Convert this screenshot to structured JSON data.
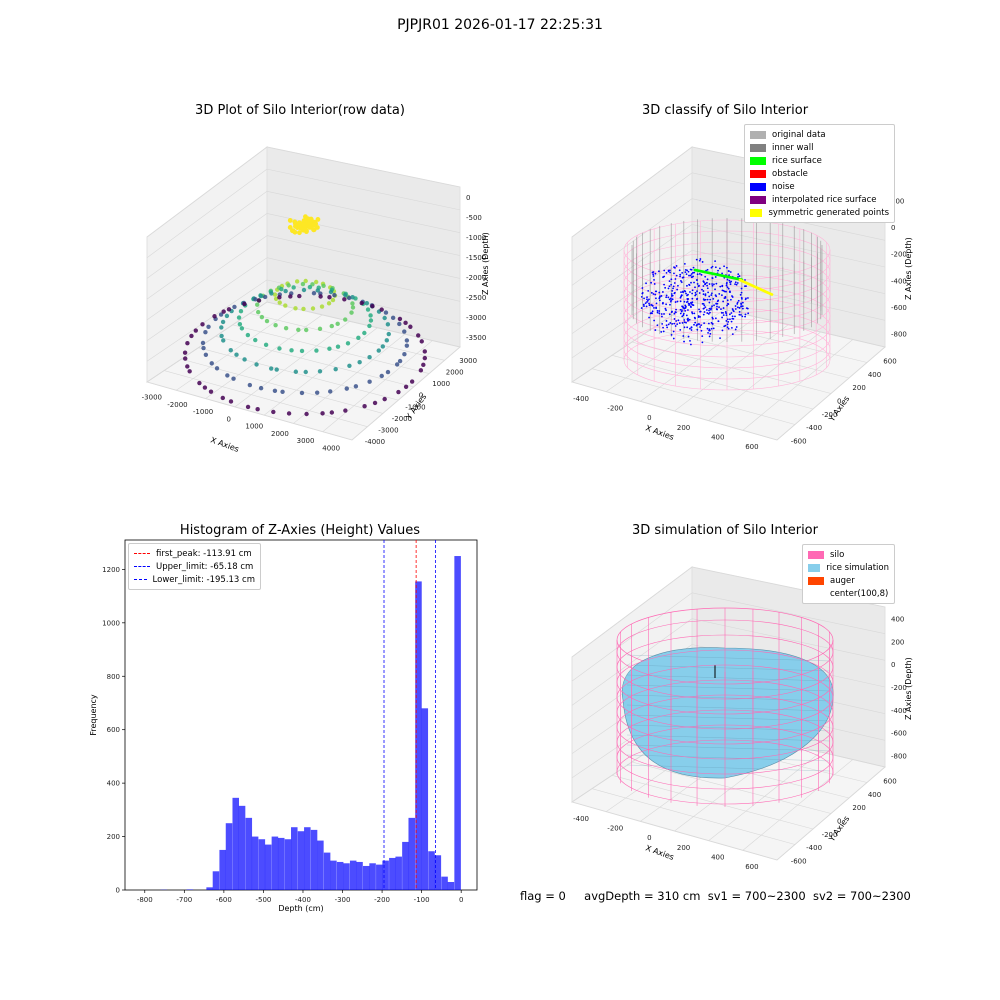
{
  "figure": {
    "suptitle": "PJPJR01 2026-01-17 22:25:31"
  },
  "status_line": {
    "flag": "flag = 0",
    "avg_depth": "avgDepth = 310 cm",
    "sv1": "sv1 = 700~2300",
    "sv2": "sv2 = 700~2300"
  },
  "colors": {
    "original_data": "#b0b0b0",
    "inner_wall": "#808080",
    "rice_surface": "#00ff00",
    "obstacle": "#ff0000",
    "noise": "#0000ff",
    "interpolated_rice_surface": "#800080",
    "symmetric_generated_points": "#ffff00",
    "silo": "#ff69b4",
    "rice_simulation": "#87ceeb",
    "auger": "#ff4500",
    "hist_bar": "#0000ff",
    "first_peak_line": "#ff0000",
    "limit_line": "#0000ff"
  },
  "chart_data": [
    {
      "type": "scatter",
      "subtype": "3d",
      "title": "3D Plot of Silo Interior(row data)",
      "xlabel": "X Axies",
      "ylabel": "Y Axies",
      "zlabel": "Z Axies (Depth)",
      "x_ticks": [
        "-3000",
        "-2000",
        "-1000",
        "0",
        "1000",
        "2000",
        "3000",
        "4000"
      ],
      "y_ticks": [
        "-4000",
        "-3000",
        "-2000",
        "-1000",
        "0",
        "1000",
        "2000",
        "3000"
      ],
      "z_ticks": [
        "0",
        "-500",
        "-1000",
        "-1500",
        "-2000",
        "-2500",
        "-3000",
        "-3500"
      ],
      "colormap": "viridis"
    },
    {
      "type": "scatter",
      "subtype": "3d",
      "title": "3D classify of Silo Interior",
      "xlabel": "X Axies",
      "ylabel": "Y Axies",
      "zlabel": "Z Axies (Depth)",
      "x_ticks": [
        "-400",
        "-200",
        "0",
        "200",
        "400",
        "600"
      ],
      "y_ticks": [
        "-600",
        "-400",
        "-200",
        "0",
        "200",
        "400",
        "600"
      ],
      "z_ticks": [
        "200",
        "0",
        "-200",
        "-400",
        "-600",
        "-800"
      ],
      "legend": [
        "original data",
        "inner wall",
        "rice surface",
        "obstacle",
        "noise",
        "interpolated rice surface",
        "symmetric generated points"
      ],
      "legend_position": "top-right"
    },
    {
      "type": "bar",
      "subtype": "histogram",
      "title": "Histogram of Z-Axies (Height) Values",
      "xlabel": "Depth (cm)",
      "ylabel": "Frequency",
      "xlim": [
        -850,
        40
      ],
      "ylim": [
        0,
        1310
      ],
      "x_ticks": [
        -800,
        -700,
        -600,
        -500,
        -400,
        -300,
        -200,
        -100,
        0
      ],
      "y_ticks": [
        0,
        200,
        400,
        600,
        800,
        1000,
        1200
      ],
      "bin_width": 16.5,
      "bin_centers": [
        -752,
        -686,
        -636,
        -620,
        -603,
        -587,
        -570,
        -554,
        -537,
        -521,
        -504,
        -488,
        -471,
        -455,
        -438,
        -422,
        -405,
        -389,
        -372,
        -356,
        -339,
        -323,
        -306,
        -290,
        -273,
        -257,
        -240,
        -224,
        -207,
        -191,
        -174,
        -158,
        -141,
        -125,
        -108,
        -92,
        -75,
        -59,
        -42,
        -26,
        -9
      ],
      "values": [
        1,
        2,
        10,
        70,
        150,
        250,
        345,
        315,
        270,
        200,
        190,
        170,
        200,
        195,
        190,
        235,
        220,
        235,
        225,
        185,
        140,
        110,
        105,
        100,
        110,
        105,
        90,
        100,
        95,
        110,
        120,
        125,
        180,
        270,
        1155,
        680,
        145,
        130,
        50,
        30,
        1250
      ],
      "vlines": [
        {
          "label": "first_peak: -113.91 cm",
          "x": -113.91,
          "color": "#ff0000"
        },
        {
          "label": "Upper_limit: -65.18 cm",
          "x": -65.18,
          "color": "#0000ff"
        },
        {
          "label": "Lower_limit: -195.13 cm",
          "x": -195.13,
          "color": "#0000ff"
        }
      ],
      "legend_position": "top-left"
    },
    {
      "type": "area",
      "subtype": "3d-surface",
      "title": "3D simulation of Silo Interior",
      "xlabel": "X Axies",
      "ylabel": "Y Axies",
      "zlabel": "Z Axies (Depth)",
      "x_ticks": [
        "-400",
        "-200",
        "0",
        "200",
        "400",
        "600"
      ],
      "y_ticks": [
        "-600",
        "-400",
        "-200",
        "0",
        "200",
        "400",
        "600"
      ],
      "z_ticks": [
        "400",
        "200",
        "0",
        "-200",
        "-400",
        "-600",
        "-800"
      ],
      "legend": [
        "silo",
        "rice simulation",
        "auger",
        "center(100,8)"
      ],
      "legend_position": "top-right"
    }
  ]
}
